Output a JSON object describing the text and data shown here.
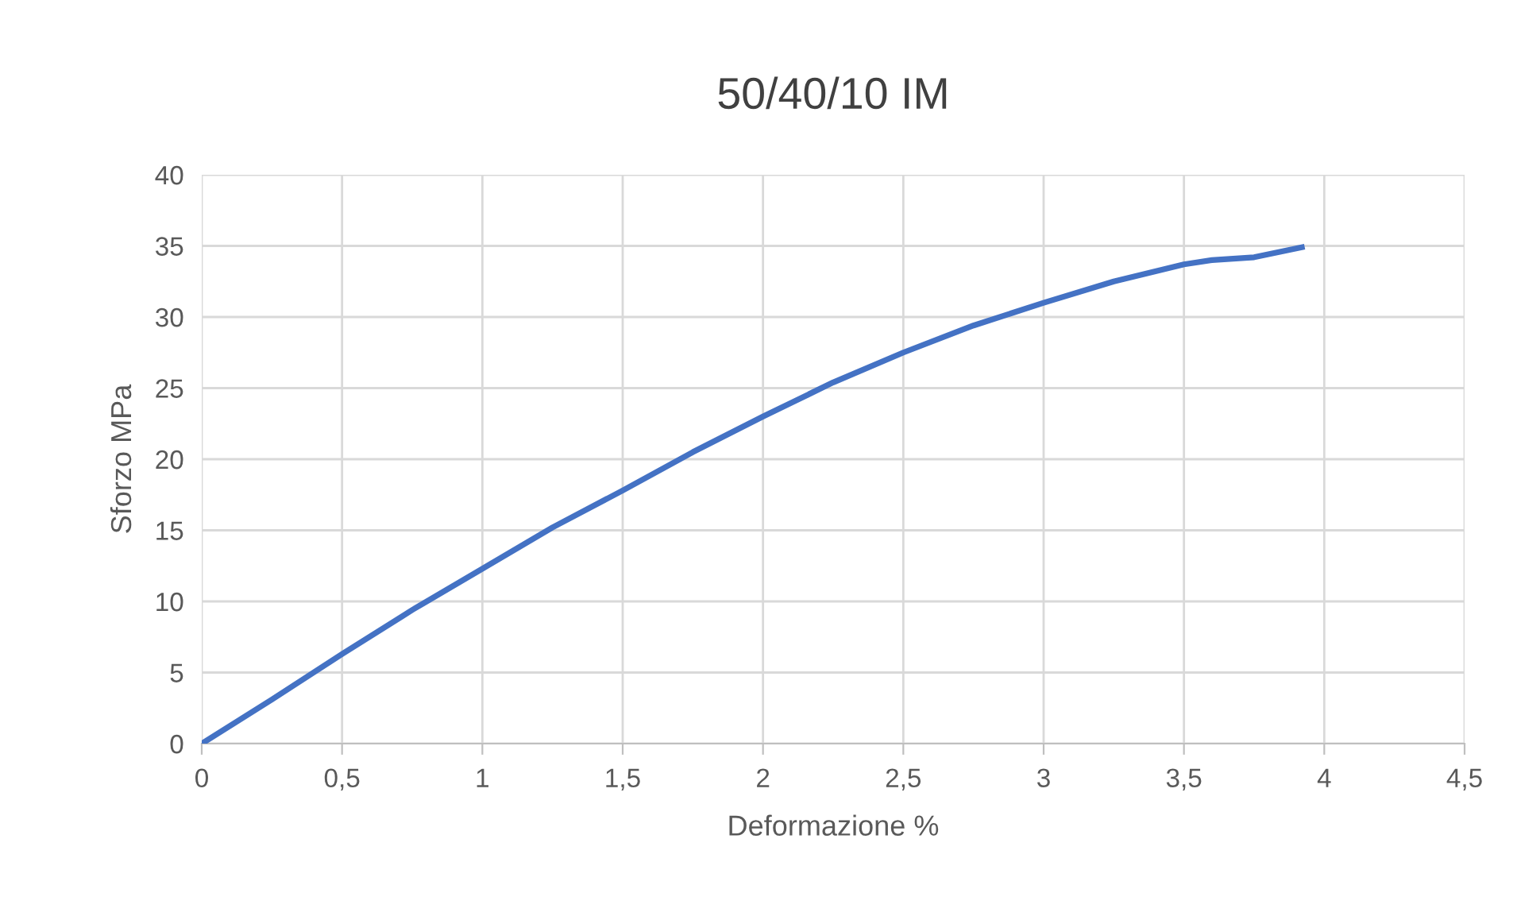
{
  "chart_data": {
    "type": "line",
    "title": "50/40/10 IM",
    "xlabel": "Deformazione %",
    "ylabel": "Sforzo MPa",
    "series": [
      {
        "color": "#4472c4",
        "x": [
          0,
          0.25,
          0.5,
          0.75,
          1,
          1.25,
          1.5,
          1.75,
          2,
          2.25,
          2.5,
          2.75,
          3,
          3.25,
          3.5,
          3.6,
          3.75,
          3.92
        ],
        "values": [
          0,
          3.1,
          6.3,
          9.4,
          12.3,
          15.2,
          17.8,
          20.5,
          23,
          25.4,
          27.5,
          29.4,
          31,
          32.5,
          33.7,
          34,
          34.2,
          34.9
        ]
      }
    ],
    "xlim": [
      0,
      4.5
    ],
    "ylim": [
      0,
      40
    ],
    "xticks": [
      0,
      {
        "value": 0.5,
        "label": "0,5"
      },
      1,
      {
        "value": 1.5,
        "label": "1,5"
      },
      2,
      {
        "value": 2.5,
        "label": "2,5"
      },
      3,
      {
        "value": 3.5,
        "label": "3,5"
      },
      4,
      {
        "value": 4.5,
        "label": "4,5"
      }
    ],
    "yticks": [
      0,
      5,
      10,
      15,
      20,
      25,
      30,
      35,
      40
    ],
    "grid": true,
    "legend": false,
    "marker": "none",
    "line_style": "solid"
  }
}
